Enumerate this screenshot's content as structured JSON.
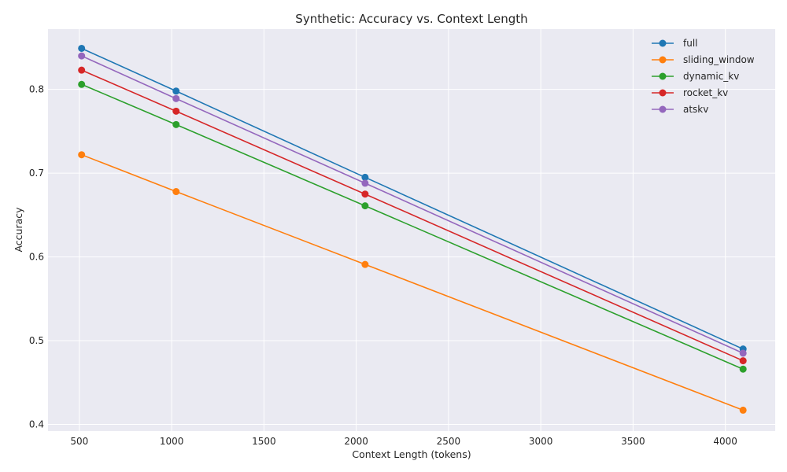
{
  "chart_data": {
    "type": "line",
    "title": "Synthetic: Accuracy vs. Context Length",
    "xlabel": "Context Length (tokens)",
    "ylabel": "Accuracy",
    "x": [
      512,
      1024,
      2048,
      4096
    ],
    "xlim": [
      330,
      4270
    ],
    "ylim": [
      0.392,
      0.872
    ],
    "xticks": [
      500,
      1000,
      1500,
      2000,
      2500,
      3000,
      3500,
      4000
    ],
    "xtick_labels": [
      "500",
      "1000",
      "1500",
      "2000",
      "2500",
      "3000",
      "3500",
      "4000"
    ],
    "yticks": [
      0.4,
      0.5,
      0.6,
      0.7,
      0.8
    ],
    "ytick_labels": [
      "0.4",
      "0.5",
      "0.6",
      "0.7",
      "0.8"
    ],
    "grid": true,
    "legend_position": "top-right",
    "series": [
      {
        "name": "full",
        "color": "#1f77b4",
        "values": [
          0.849,
          0.798,
          0.695,
          0.49
        ]
      },
      {
        "name": "sliding_window",
        "color": "#ff7f0e",
        "values": [
          0.722,
          0.678,
          0.591,
          0.417
        ]
      },
      {
        "name": "dynamic_kv",
        "color": "#2ca02c",
        "values": [
          0.806,
          0.758,
          0.661,
          0.466
        ]
      },
      {
        "name": "rocket_kv",
        "color": "#d62728",
        "values": [
          0.823,
          0.774,
          0.675,
          0.476
        ]
      },
      {
        "name": "atskv",
        "color": "#9467bd",
        "values": [
          0.84,
          0.789,
          0.688,
          0.485
        ]
      }
    ]
  }
}
